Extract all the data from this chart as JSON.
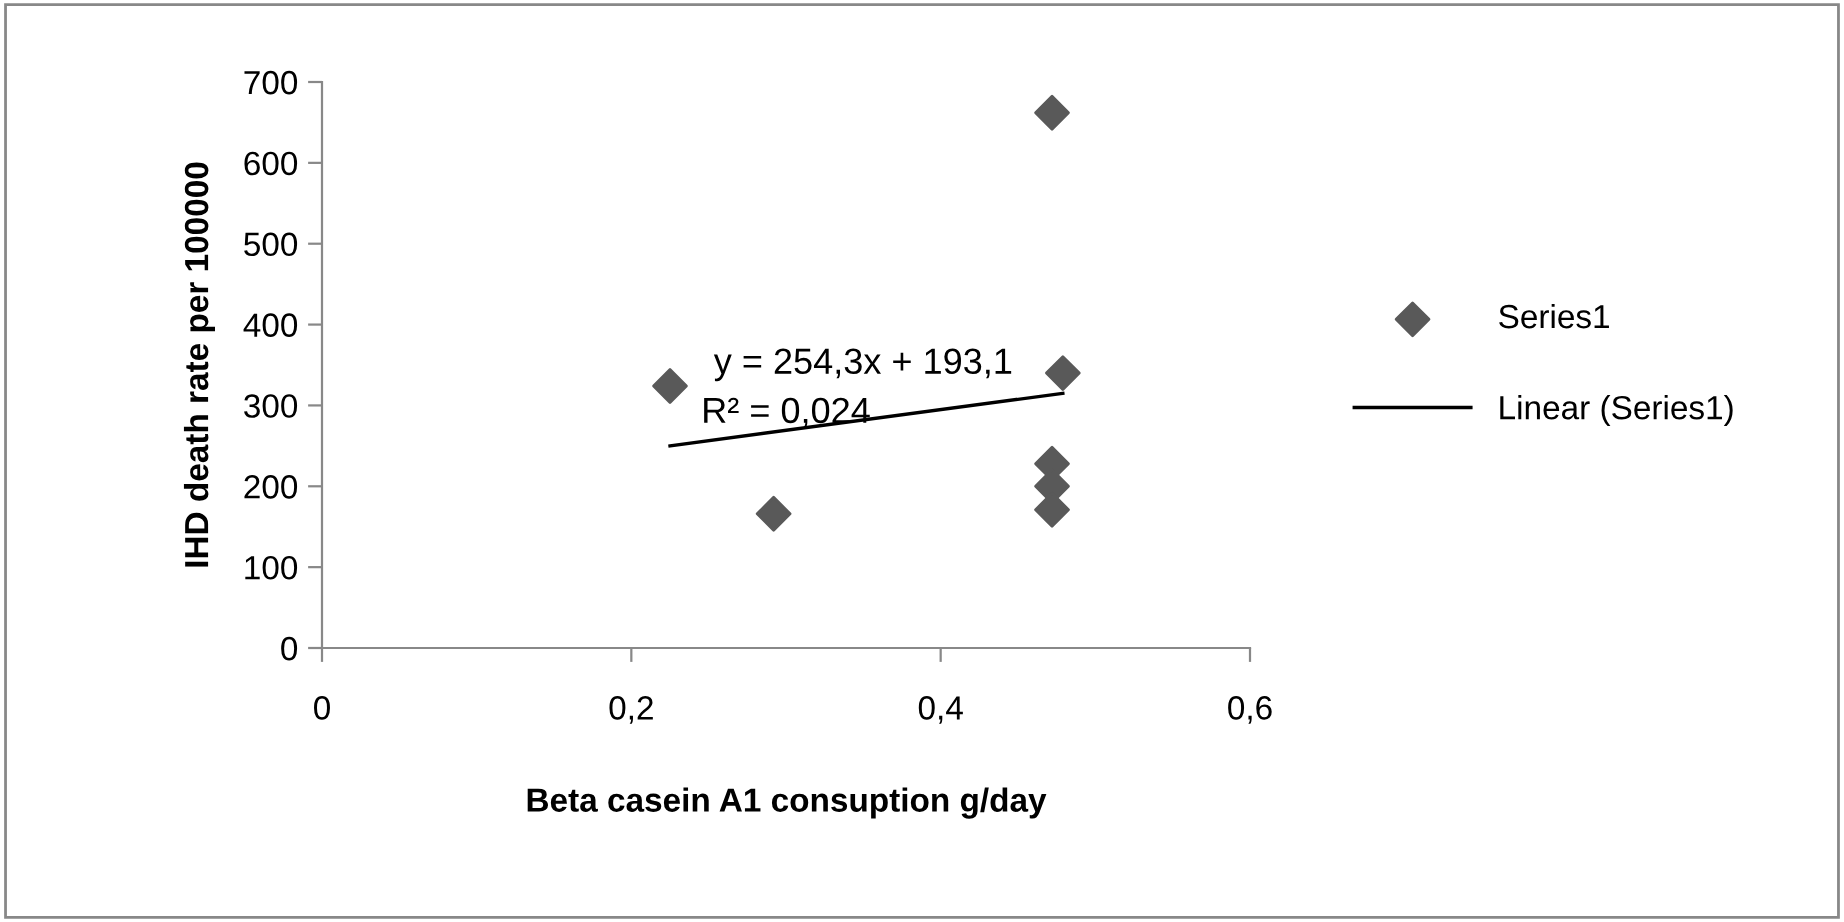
{
  "chart_data": {
    "type": "scatter",
    "xlabel": "Beta casein A1 consuption g/day",
    "ylabel": "IHD death rate per 100000",
    "xlim": [
      0,
      0.6
    ],
    "xticks": [
      {
        "value": 0,
        "label": "0"
      },
      {
        "value": 0.2,
        "label": "0,2"
      },
      {
        "value": 0.4,
        "label": "0,4"
      },
      {
        "value": 0.6,
        "label": "0,6"
      }
    ],
    "ylim": [
      0,
      700
    ],
    "yticks": [
      0,
      100,
      200,
      300,
      400,
      500,
      600,
      700
    ],
    "grid": false,
    "legend": "right",
    "annotations": [
      "y = 254,3x + 193,1",
      "R² = 0,024"
    ],
    "series": [
      {
        "name": "Series1",
        "marker": "diamond",
        "color": "#595959",
        "x": [
          0.225,
          0.292,
          0.472,
          0.472,
          0.472,
          0.472,
          0.479
        ],
        "values": [
          324,
          166,
          662,
          228,
          200,
          171,
          340
        ]
      },
      {
        "name": "Linear (Series1)",
        "type": "line",
        "marker": "none",
        "color": "#000000",
        "x": [
          0.225,
          0.479
        ],
        "values": [
          250,
          315
        ]
      }
    ]
  }
}
